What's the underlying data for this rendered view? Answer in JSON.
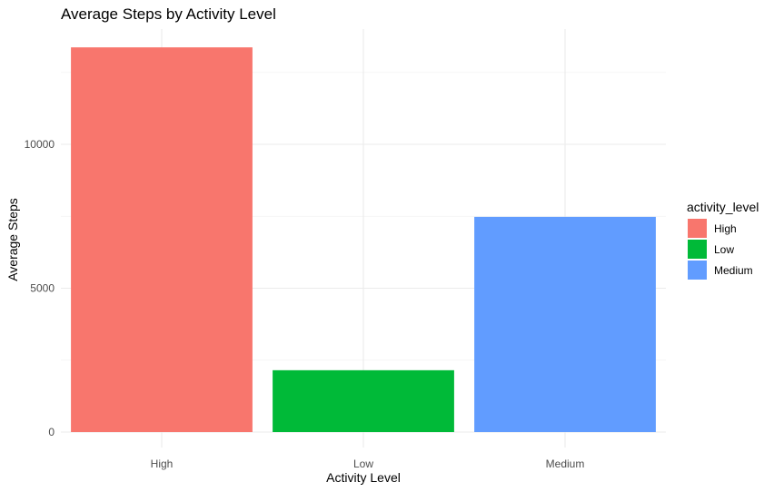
{
  "chart_data": {
    "type": "bar",
    "title": "Average Steps by Activity Level",
    "xlabel": "Activity Level",
    "ylabel": "Average Steps",
    "categories": [
      "High",
      "Low",
      "Medium"
    ],
    "values": [
      13370,
      2150,
      7480
    ],
    "colors": [
      "#F8766D",
      "#00BA38",
      "#619CFF"
    ],
    "ylim": [
      0,
      14000
    ],
    "yticks": [
      0,
      5000,
      10000
    ],
    "ytick_labels": [
      "0",
      "5000",
      "10000"
    ],
    "grid": true,
    "theme": "minimal",
    "legend": {
      "title": "activity_level",
      "position": "right",
      "entries": [
        "High",
        "Low",
        "Medium"
      ]
    }
  }
}
